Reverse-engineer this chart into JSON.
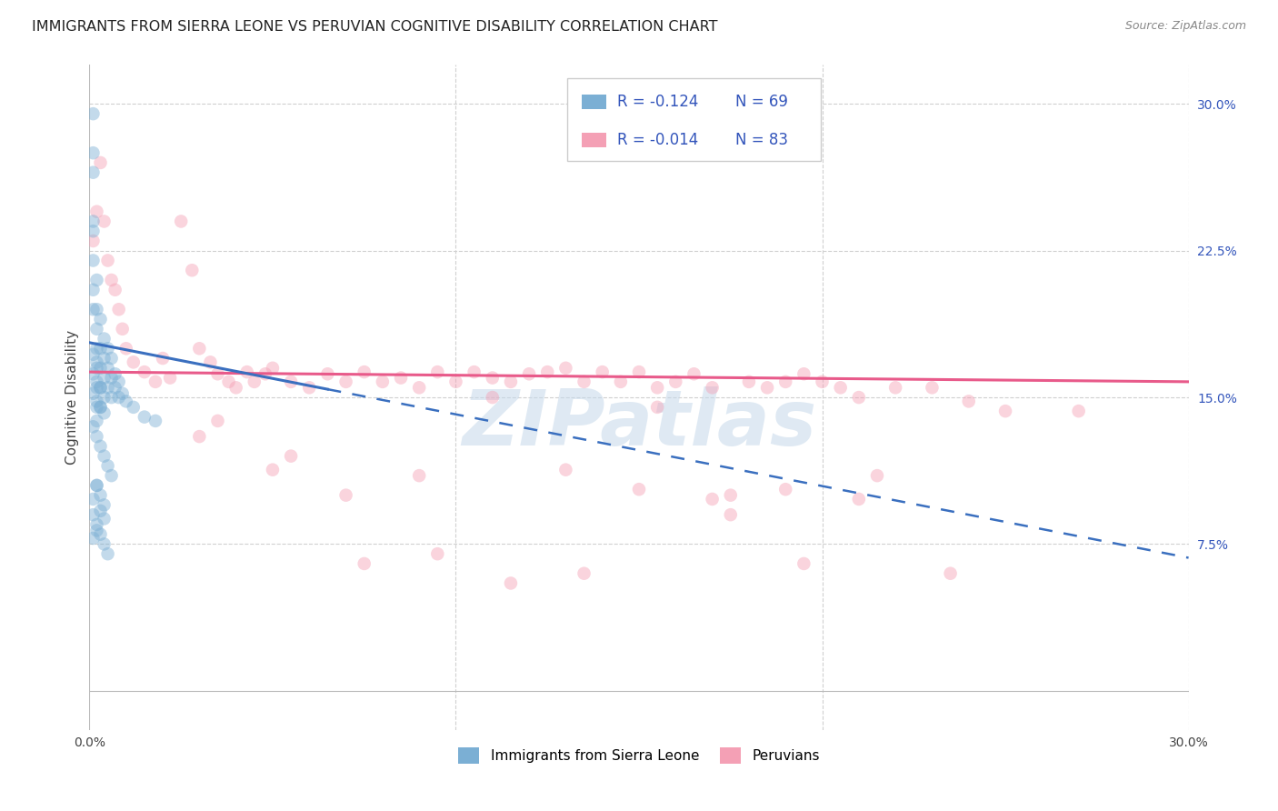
{
  "title": "IMMIGRANTS FROM SIERRA LEONE VS PERUVIAN COGNITIVE DISABILITY CORRELATION CHART",
  "source": "Source: ZipAtlas.com",
  "ylabel": "Cognitive Disability",
  "xlim": [
    0.0,
    0.3
  ],
  "ylim": [
    -0.02,
    0.32
  ],
  "plot_ylim": [
    0.0,
    0.3
  ],
  "y_ticks_right": [
    0.075,
    0.15,
    0.225,
    0.3
  ],
  "y_tick_labels_right": [
    "7.5%",
    "15.0%",
    "22.5%",
    "30.0%"
  ],
  "x_ticks": [
    0.0,
    0.1,
    0.2,
    0.3
  ],
  "x_tick_labels": [
    "0.0%",
    "",
    "",
    "30.0%"
  ],
  "legend_label1": "Immigrants from Sierra Leone",
  "legend_label2": "Peruvians",
  "watermark": "ZIPatlas",
  "watermark_color": "#c5d8ea",
  "blue_scatter_x": [
    0.001,
    0.001,
    0.001,
    0.001,
    0.001,
    0.001,
    0.001,
    0.001,
    0.002,
    0.002,
    0.002,
    0.002,
    0.002,
    0.002,
    0.002,
    0.003,
    0.003,
    0.003,
    0.003,
    0.003,
    0.004,
    0.004,
    0.004,
    0.004,
    0.005,
    0.005,
    0.005,
    0.006,
    0.006,
    0.006,
    0.007,
    0.007,
    0.008,
    0.008,
    0.009,
    0.01,
    0.012,
    0.015,
    0.018,
    0.001,
    0.002,
    0.001,
    0.002,
    0.003,
    0.001,
    0.002,
    0.003,
    0.004,
    0.002,
    0.001,
    0.002,
    0.003,
    0.004,
    0.005,
    0.006,
    0.002,
    0.003,
    0.004,
    0.001,
    0.002,
    0.003,
    0.004,
    0.005,
    0.002,
    0.001,
    0.003,
    0.004,
    0.002,
    0.001
  ],
  "blue_scatter_y": [
    0.295,
    0.275,
    0.265,
    0.24,
    0.235,
    0.22,
    0.205,
    0.195,
    0.21,
    0.195,
    0.185,
    0.175,
    0.165,
    0.155,
    0.145,
    0.19,
    0.175,
    0.165,
    0.155,
    0.145,
    0.18,
    0.17,
    0.16,
    0.15,
    0.175,
    0.165,
    0.155,
    0.17,
    0.16,
    0.15,
    0.162,
    0.155,
    0.158,
    0.15,
    0.152,
    0.148,
    0.145,
    0.14,
    0.138,
    0.172,
    0.168,
    0.162,
    0.158,
    0.155,
    0.152,
    0.148,
    0.145,
    0.142,
    0.138,
    0.135,
    0.13,
    0.125,
    0.12,
    0.115,
    0.11,
    0.105,
    0.1,
    0.095,
    0.09,
    0.085,
    0.08,
    0.075,
    0.07,
    0.105,
    0.098,
    0.092,
    0.088,
    0.082,
    0.078
  ],
  "pink_scatter_x": [
    0.001,
    0.002,
    0.003,
    0.004,
    0.005,
    0.006,
    0.007,
    0.008,
    0.009,
    0.01,
    0.012,
    0.015,
    0.018,
    0.02,
    0.022,
    0.025,
    0.028,
    0.03,
    0.033,
    0.035,
    0.038,
    0.04,
    0.043,
    0.045,
    0.048,
    0.05,
    0.055,
    0.06,
    0.065,
    0.07,
    0.075,
    0.08,
    0.085,
    0.09,
    0.095,
    0.1,
    0.105,
    0.11,
    0.115,
    0.12,
    0.125,
    0.13,
    0.135,
    0.14,
    0.145,
    0.15,
    0.155,
    0.16,
    0.165,
    0.17,
    0.175,
    0.18,
    0.185,
    0.19,
    0.195,
    0.2,
    0.205,
    0.21,
    0.22,
    0.23,
    0.24,
    0.25,
    0.27,
    0.03,
    0.05,
    0.07,
    0.09,
    0.11,
    0.13,
    0.15,
    0.17,
    0.19,
    0.21,
    0.035,
    0.055,
    0.075,
    0.095,
    0.115,
    0.135,
    0.155,
    0.175,
    0.195,
    0.215,
    0.235
  ],
  "pink_scatter_y": [
    0.23,
    0.245,
    0.27,
    0.24,
    0.22,
    0.21,
    0.205,
    0.195,
    0.185,
    0.175,
    0.168,
    0.163,
    0.158,
    0.17,
    0.16,
    0.24,
    0.215,
    0.175,
    0.168,
    0.162,
    0.158,
    0.155,
    0.163,
    0.158,
    0.162,
    0.165,
    0.158,
    0.155,
    0.162,
    0.158,
    0.163,
    0.158,
    0.16,
    0.155,
    0.163,
    0.158,
    0.163,
    0.16,
    0.158,
    0.162,
    0.163,
    0.165,
    0.158,
    0.163,
    0.158,
    0.163,
    0.155,
    0.158,
    0.162,
    0.155,
    0.1,
    0.158,
    0.155,
    0.158,
    0.162,
    0.158,
    0.155,
    0.15,
    0.155,
    0.155,
    0.148,
    0.143,
    0.143,
    0.13,
    0.113,
    0.1,
    0.11,
    0.15,
    0.113,
    0.103,
    0.098,
    0.103,
    0.098,
    0.138,
    0.12,
    0.065,
    0.07,
    0.055,
    0.06,
    0.145,
    0.09,
    0.065,
    0.11,
    0.06
  ],
  "blue_line_y_start": 0.178,
  "blue_line_y_at_split": 0.16,
  "blue_line_y_end": 0.068,
  "blue_line_split": 0.065,
  "pink_line_y_start": 0.163,
  "pink_line_y_end": 0.158,
  "scatter_size": 110,
  "scatter_alpha": 0.45,
  "blue_color": "#7bafd4",
  "pink_color": "#f4a0b5",
  "blue_line_color": "#3a6fbf",
  "pink_line_color": "#e85a8a",
  "grid_color": "#d0d0d0",
  "background_color": "#ffffff",
  "title_fontsize": 11.5,
  "source_fontsize": 9,
  "axis_label_fontsize": 11,
  "tick_fontsize": 10,
  "legend_fontsize": 12,
  "legend_color": "#3355bb"
}
